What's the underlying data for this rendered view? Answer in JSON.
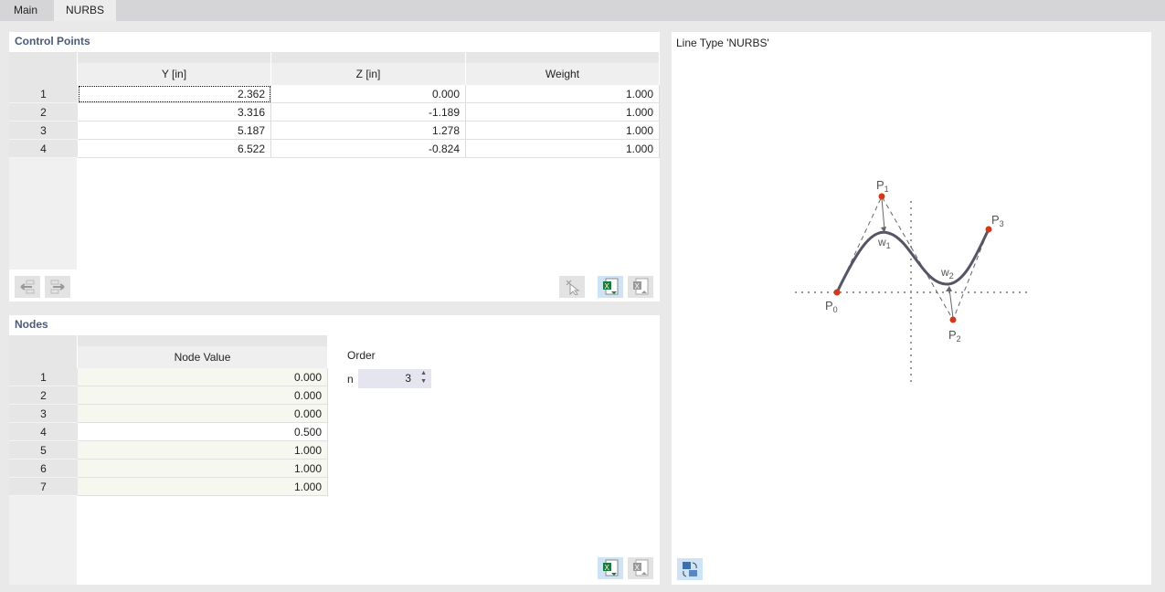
{
  "tabs": [
    {
      "label": "Main",
      "active": false
    },
    {
      "label": "NURBS",
      "active": true
    }
  ],
  "control_points": {
    "title": "Control Points",
    "columns": [
      "Y [in]",
      "Z [in]",
      "Weight"
    ],
    "rows": [
      {
        "n": "1",
        "y": "2.362",
        "z": "0.000",
        "w": "1.000"
      },
      {
        "n": "2",
        "y": "3.316",
        "z": "-1.189",
        "w": "1.000"
      },
      {
        "n": "3",
        "y": "5.187",
        "z": "1.278",
        "w": "1.000"
      },
      {
        "n": "4",
        "y": "6.522",
        "z": "-0.824",
        "w": "1.000"
      }
    ]
  },
  "nodes": {
    "title": "Nodes",
    "column": "Node Value",
    "rows": [
      {
        "n": "1",
        "v": "0.000"
      },
      {
        "n": "2",
        "v": "0.000"
      },
      {
        "n": "3",
        "v": "0.000"
      },
      {
        "n": "4",
        "v": "0.500"
      },
      {
        "n": "5",
        "v": "1.000"
      },
      {
        "n": "6",
        "v": "1.000"
      },
      {
        "n": "7",
        "v": "1.000"
      }
    ],
    "order_label": "Order",
    "n_label": "n",
    "n_value": "3"
  },
  "preview": {
    "title": "Line Type 'NURBS'",
    "labels": {
      "p0": "P",
      "p0s": "0",
      "p1": "P",
      "p1s": "1",
      "p2": "P",
      "p2s": "2",
      "p3": "P",
      "p3s": "3",
      "w1": "w",
      "w1s": "1",
      "w2": "w",
      "w2s": "2"
    },
    "point_color": "#d0391a",
    "curve_color": "#555566"
  }
}
